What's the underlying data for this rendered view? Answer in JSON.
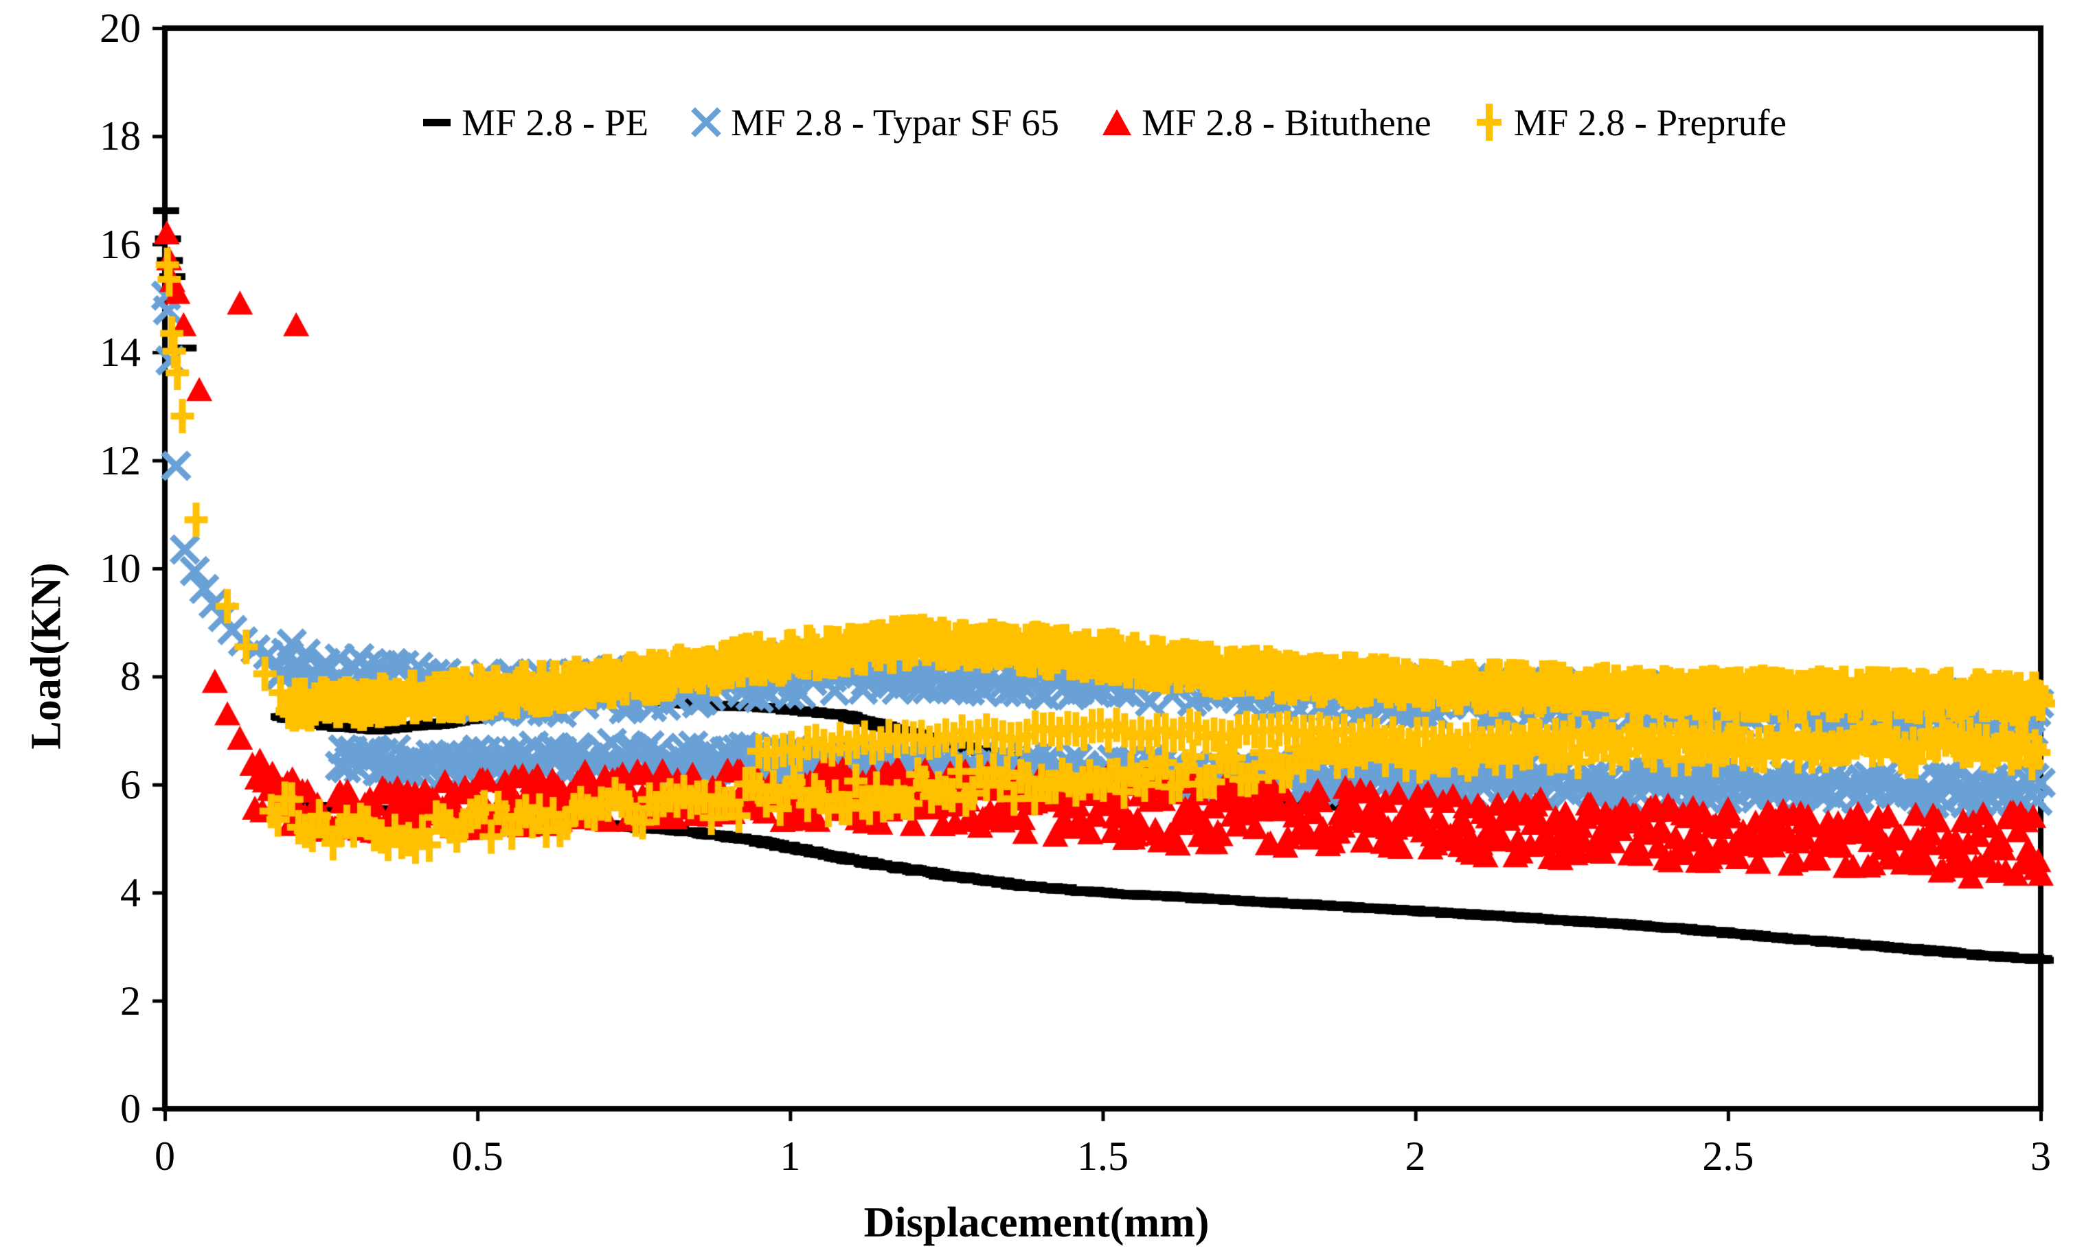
{
  "chart_data": {
    "type": "scatter",
    "title": "",
    "xlabel": "Displacement(mm)",
    "ylabel": "Load(KN)",
    "xlim": [
      0,
      3
    ],
    "ylim": [
      0,
      20
    ],
    "grid": false,
    "legend_position": "top-center",
    "xticks": [
      0,
      0.5,
      1,
      1.5,
      2,
      2.5,
      3
    ],
    "xtick_labels": [
      "0",
      "0.5",
      "1",
      "1.5",
      "2",
      "2.5",
      "3"
    ],
    "yticks": [
      0,
      2,
      4,
      6,
      8,
      10,
      12,
      14,
      16,
      18,
      20
    ],
    "ytick_labels": [
      "0",
      "2",
      "4",
      "6",
      "8",
      "10",
      "12",
      "14",
      "16",
      "18",
      "20"
    ],
    "axis_color": "#000000",
    "series": [
      {
        "name": "MF 2.8 - PE",
        "color": "#000000",
        "marker": "dash",
        "scatter": [
          [
            0.002,
            16.62
          ],
          [
            0.005,
            16.1
          ],
          [
            0.008,
            15.7
          ],
          [
            0.012,
            15.4
          ],
          [
            0.03,
            14.08
          ]
        ],
        "bands": [
          {
            "half": 0.03,
            "step": 0.0025,
            "keys": [
              [
                0.19,
                7.25
              ],
              [
                0.27,
                7.08
              ],
              [
                0.34,
                7.02
              ],
              [
                0.44,
                7.12
              ],
              [
                0.54,
                7.32
              ],
              [
                0.64,
                7.5
              ],
              [
                0.74,
                7.58
              ],
              [
                0.86,
                7.48
              ],
              [
                0.98,
                7.4
              ],
              [
                1.08,
                7.3
              ],
              [
                1.18,
                6.98
              ],
              [
                1.28,
                6.68
              ],
              [
                1.38,
                6.45
              ],
              [
                1.48,
                6.22
              ],
              [
                1.58,
                6.02
              ],
              [
                1.68,
                5.88
              ],
              [
                1.78,
                5.72
              ],
              [
                1.88,
                5.6
              ]
            ]
          },
          {
            "half": 0.03,
            "step": 0.0025,
            "keys": [
              [
                0.23,
                5.6
              ],
              [
                0.36,
                5.52
              ],
              [
                0.5,
                5.45
              ],
              [
                0.62,
                5.32
              ],
              [
                0.74,
                5.22
              ],
              [
                0.86,
                5.1
              ],
              [
                0.95,
                4.95
              ],
              [
                1.05,
                4.72
              ],
              [
                1.15,
                4.5
              ],
              [
                1.25,
                4.32
              ],
              [
                1.38,
                4.12
              ],
              [
                1.5,
                4.0
              ],
              [
                1.65,
                3.9
              ],
              [
                1.8,
                3.8
              ],
              [
                2.0,
                3.66
              ],
              [
                2.2,
                3.52
              ],
              [
                2.4,
                3.36
              ],
              [
                2.6,
                3.15
              ],
              [
                2.8,
                2.95
              ],
              [
                2.95,
                2.8
              ],
              [
                3.0,
                2.77
              ]
            ]
          }
        ]
      },
      {
        "name": "MF 2.8 - Typar SF 65",
        "color": "#69A1D6",
        "marker": "x",
        "scatter": [
          [
            0.002,
            15.05
          ],
          [
            0.005,
            14.78
          ],
          [
            0.009,
            13.85
          ],
          [
            0.018,
            11.9
          ],
          [
            0.032,
            10.35
          ],
          [
            0.048,
            9.95
          ],
          [
            0.063,
            9.62
          ],
          [
            0.078,
            9.35
          ],
          [
            0.093,
            9.1
          ],
          [
            0.108,
            8.86
          ],
          [
            0.125,
            8.65
          ],
          [
            0.145,
            8.5
          ],
          [
            0.165,
            8.4
          ]
        ],
        "bands": [
          {
            "half": 0.38,
            "step": 0.0045,
            "keys": [
              [
                0.185,
                8.3
              ],
              [
                0.28,
                8.02
              ],
              [
                0.4,
                7.82
              ],
              [
                0.52,
                7.72
              ],
              [
                0.65,
                7.7
              ],
              [
                0.8,
                7.82
              ],
              [
                0.95,
                7.98
              ],
              [
                1.1,
                8.08
              ],
              [
                1.25,
                8.12
              ],
              [
                1.4,
                8.02
              ],
              [
                1.55,
                7.92
              ],
              [
                1.7,
                7.82
              ],
              [
                1.85,
                7.72
              ],
              [
                2.0,
                7.65
              ],
              [
                2.2,
                7.56
              ],
              [
                2.4,
                7.48
              ],
              [
                2.6,
                7.42
              ],
              [
                2.8,
                7.36
              ],
              [
                3.0,
                7.3
              ]
            ]
          },
          {
            "half": 0.28,
            "step": 0.005,
            "keys": [
              [
                0.28,
                6.42
              ],
              [
                0.42,
                6.35
              ],
              [
                0.58,
                6.45
              ],
              [
                0.72,
                6.5
              ],
              [
                0.9,
                6.45
              ],
              [
                1.1,
                6.35
              ],
              [
                1.3,
                6.27
              ],
              [
                1.5,
                6.22
              ],
              [
                1.7,
                6.17
              ],
              [
                1.9,
                6.12
              ],
              [
                2.1,
                6.07
              ],
              [
                2.3,
                6.02
              ],
              [
                2.6,
                5.95
              ],
              [
                2.8,
                5.9
              ],
              [
                3.0,
                5.86
              ]
            ]
          }
        ]
      },
      {
        "name": "MF 2.8 - Bituthene",
        "color": "#FF0000",
        "marker": "triangle",
        "scatter": [
          [
            0.003,
            16.2
          ],
          [
            0.007,
            15.72
          ],
          [
            0.012,
            15.32
          ],
          [
            0.02,
            15.1
          ],
          [
            0.03,
            14.5
          ],
          [
            0.055,
            13.3
          ],
          [
            0.12,
            14.9
          ],
          [
            0.21,
            14.5
          ],
          [
            0.08,
            7.9
          ],
          [
            0.1,
            7.3
          ],
          [
            0.12,
            6.85
          ]
        ],
        "bands": [
          {
            "step": 0.004,
            "keys": [
              [
                0.14,
                6.0,
                0.5
              ],
              [
                0.22,
                5.62,
                0.48
              ],
              [
                0.32,
                5.52,
                0.48
              ],
              [
                0.45,
                5.62,
                0.48
              ],
              [
                0.6,
                5.72,
                0.5
              ],
              [
                0.78,
                5.78,
                0.5
              ],
              [
                0.95,
                5.8,
                0.5
              ],
              [
                1.1,
                5.82,
                0.52
              ],
              [
                1.25,
                5.75,
                0.56
              ],
              [
                1.4,
                5.65,
                0.62
              ],
              [
                1.55,
                5.55,
                0.64
              ],
              [
                1.7,
                5.48,
                0.62
              ],
              [
                1.85,
                5.42,
                0.6
              ],
              [
                2.0,
                5.3,
                0.6
              ],
              [
                2.15,
                5.22,
                0.58
              ],
              [
                2.3,
                5.12,
                0.55
              ],
              [
                2.5,
                5.02,
                0.55
              ],
              [
                2.7,
                4.92,
                0.55
              ],
              [
                2.85,
                4.87,
                0.58
              ],
              [
                3.0,
                4.85,
                0.65
              ]
            ]
          }
        ]
      },
      {
        "name": "MF 2.8 - Preprufe",
        "color": "#FFC000",
        "marker": "plus",
        "scatter": [
          [
            0.004,
            15.62
          ],
          [
            0.007,
            15.35
          ],
          [
            0.011,
            14.35
          ],
          [
            0.015,
            14.02
          ],
          [
            0.02,
            13.62
          ],
          [
            0.028,
            12.82
          ],
          [
            0.05,
            10.9
          ],
          [
            0.1,
            9.3
          ],
          [
            0.13,
            8.55
          ],
          [
            0.16,
            8.05
          ],
          [
            0.185,
            7.7
          ]
        ],
        "bands": [
          {
            "half": 0.22,
            "step": 0.0035,
            "marker": "plusThick",
            "keys": [
              [
                0.2,
                7.42
              ],
              [
                0.32,
                7.52
              ],
              [
                0.46,
                7.66
              ],
              [
                0.62,
                7.8
              ],
              [
                0.78,
                8.0
              ],
              [
                0.92,
                8.25
              ],
              [
                1.06,
                8.48
              ],
              [
                1.2,
                8.62
              ],
              [
                1.34,
                8.55
              ],
              [
                1.5,
                8.38
              ],
              [
                1.64,
                8.15
              ],
              [
                1.8,
                8.0
              ],
              [
                1.95,
                7.88
              ],
              [
                2.1,
                7.8
              ],
              [
                2.3,
                7.74
              ],
              [
                2.5,
                7.7
              ],
              [
                2.7,
                7.66
              ],
              [
                2.85,
                7.63
              ],
              [
                3.0,
                7.6
              ]
            ]
          },
          {
            "half": 0.3,
            "step": 0.011,
            "marker": "plusTall",
            "keys": [
              [
                0.17,
                5.72
              ],
              [
                0.25,
                5.18
              ],
              [
                0.35,
                5.05
              ],
              [
                0.5,
                5.3
              ],
              [
                0.7,
                5.52
              ],
              [
                0.9,
                5.7
              ],
              [
                1.1,
                5.85
              ],
              [
                1.3,
                5.97
              ],
              [
                1.5,
                6.12
              ],
              [
                1.7,
                6.32
              ],
              [
                1.9,
                6.52
              ],
              [
                2.1,
                6.65
              ],
              [
                2.3,
                6.72
              ],
              [
                2.6,
                6.72
              ],
              [
                2.8,
                6.7
              ],
              [
                3.0,
                6.68
              ]
            ]
          },
          {
            "half": 0.12,
            "step": 0.013,
            "marker": "plusTall",
            "keys": [
              [
                0.95,
                6.62
              ],
              [
                1.15,
                6.78
              ],
              [
                1.35,
                6.92
              ],
              [
                1.55,
                7.0
              ],
              [
                1.75,
                6.95
              ],
              [
                1.95,
                6.86
              ],
              [
                2.15,
                6.8
              ],
              [
                2.35,
                6.78
              ],
              [
                2.6,
                6.75
              ],
              [
                3.0,
                6.72
              ]
            ]
          }
        ]
      }
    ]
  }
}
